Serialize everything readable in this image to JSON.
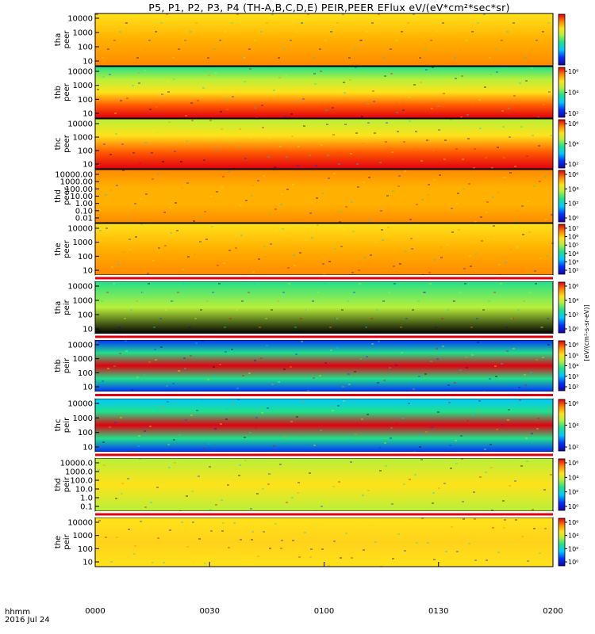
{
  "title": "P5, P1, P2, P3, P4 (TH-A,B,C,D,E) PEIR,PEER EFlux eV/(eV*cm²*sec*sr)",
  "time_axis": {
    "ticks": [
      "0000",
      "0030",
      "0100",
      "0130",
      "0200"
    ],
    "row_label": "hhmm",
    "date_label": "2016 Jul 24"
  },
  "colorbar_unit": "[eV/(cm²-s-sr-eV)]",
  "colorbar_tick_map": {
    "10^0": "10⁰",
    "10^1": "10¹",
    "10^2": "10²",
    "10^3": "10³",
    "10^4": "10⁴",
    "10^5": "10⁵",
    "10^6": "10⁶",
    "10^7": "10⁷"
  },
  "chart_data": [
    {
      "type": "heatmap",
      "probe": "tha",
      "species": "peer",
      "ylabel": [
        "tha",
        "peer"
      ],
      "yscale": "log",
      "yticks": [
        "10",
        "100",
        "1000",
        "10000"
      ],
      "colorbar_ticks": []
    },
    {
      "type": "heatmap",
      "probe": "thb",
      "species": "peer",
      "ylabel": [
        "thb",
        "peer"
      ],
      "yscale": "log",
      "yticks": [
        "10",
        "100",
        "1000",
        "10000"
      ],
      "colorbar_ticks": [
        "10^2",
        "10^4",
        "10^6"
      ]
    },
    {
      "type": "heatmap",
      "probe": "thc",
      "species": "peer",
      "ylabel": [
        "thc",
        "peer"
      ],
      "yscale": "log",
      "yticks": [
        "10",
        "100",
        "1000",
        "10000"
      ],
      "colorbar_ticks": [
        "10^2",
        "10^4",
        "10^6"
      ]
    },
    {
      "type": "heatmap",
      "probe": "thd",
      "species": "peer",
      "ylabel": [
        "thd",
        "peer"
      ],
      "yscale": "log",
      "yticks": [
        "0.01",
        "0.10",
        "1.00",
        "10.00",
        "100.00",
        "1000.00",
        "10000.00"
      ],
      "colorbar_ticks": [
        "10^0",
        "10^2",
        "10^4",
        "10^6"
      ]
    },
    {
      "type": "heatmap",
      "probe": "the",
      "species": "peer",
      "ylabel": [
        "the",
        "peer"
      ],
      "yscale": "log",
      "yticks": [
        "10",
        "100",
        "1000",
        "10000"
      ],
      "colorbar_ticks": [
        "10^2",
        "10^3",
        "10^4",
        "10^5",
        "10^6",
        "10^7"
      ]
    },
    {
      "type": "heatmap",
      "probe": "tha",
      "species": "peir",
      "ylabel": [
        "tha",
        "peir"
      ],
      "yscale": "log",
      "yticks": [
        "10",
        "100",
        "1000",
        "10000"
      ],
      "colorbar_ticks": [
        "10^0",
        "10^2",
        "10^4",
        "10^6"
      ]
    },
    {
      "type": "heatmap",
      "probe": "thb",
      "species": "peir",
      "ylabel": [
        "thb",
        "peir"
      ],
      "yscale": "log",
      "yticks": [
        "10",
        "100",
        "1000",
        "10000"
      ],
      "colorbar_ticks": [
        "10^2",
        "10^3",
        "10^4",
        "10^5",
        "10^6"
      ]
    },
    {
      "type": "heatmap",
      "probe": "thc",
      "species": "peir",
      "ylabel": [
        "thc",
        "peir"
      ],
      "yscale": "log",
      "yticks": [
        "10",
        "100",
        "1000",
        "10000"
      ],
      "colorbar_ticks": [
        "10^2",
        "10^4",
        "10^6"
      ]
    },
    {
      "type": "heatmap",
      "probe": "thd",
      "species": "peir",
      "ylabel": [
        "thd",
        "peir"
      ],
      "yscale": "log",
      "yticks": [
        "0.1",
        "1.0",
        "10.0",
        "100.0",
        "1000.0",
        "10000.0"
      ],
      "colorbar_ticks": [
        "10^0",
        "10^2",
        "10^4",
        "10^6"
      ]
    },
    {
      "type": "heatmap",
      "probe": "the",
      "species": "peir",
      "ylabel": [
        "the",
        "peir"
      ],
      "yscale": "log",
      "yticks": [
        "10",
        "100",
        "1000",
        "10000"
      ],
      "colorbar_ticks": [
        "10^0",
        "10^2",
        "10^4",
        "10^6"
      ]
    }
  ]
}
